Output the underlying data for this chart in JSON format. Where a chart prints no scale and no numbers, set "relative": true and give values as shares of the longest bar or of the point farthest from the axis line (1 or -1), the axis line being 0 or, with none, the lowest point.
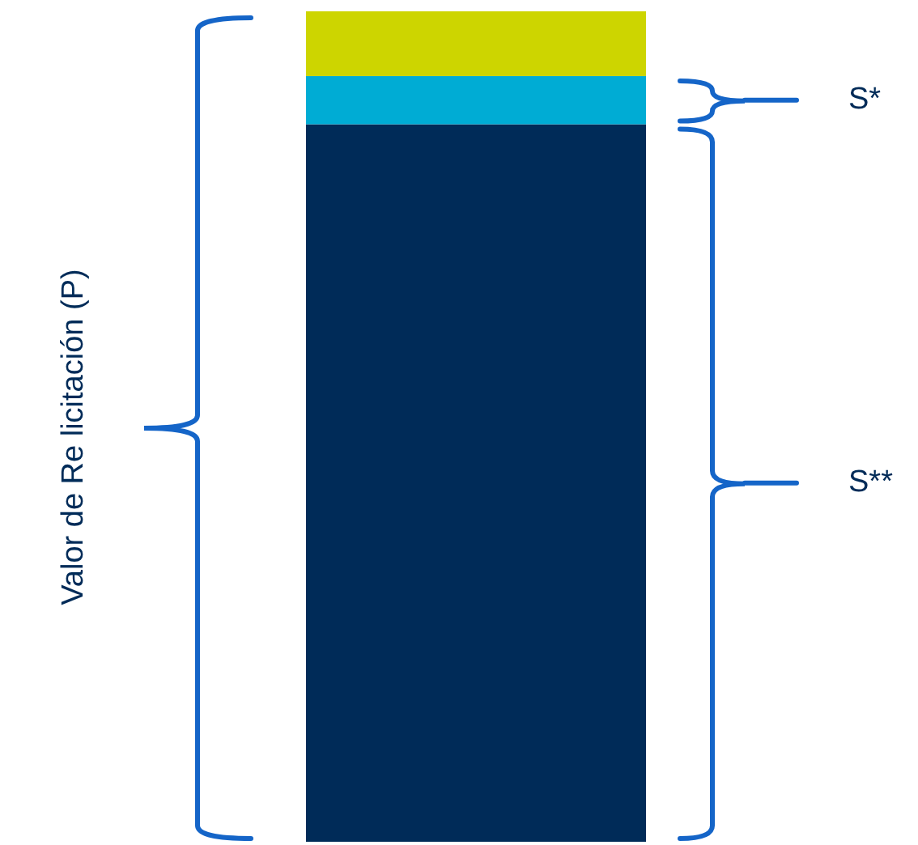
{
  "chart_data": {
    "type": "bar",
    "stacked": true,
    "relative": true,
    "categories": [
      null
    ],
    "series": [
      {
        "color": "#002b58",
        "values": [
          0.864
        ]
      },
      {
        "color": "#00acd4",
        "values": [
          0.058
        ]
      },
      {
        "color": "#cdd500",
        "values": [
          0.078
        ]
      }
    ],
    "annotations": [
      "Valor de Re licitación (P)",
      "S*",
      "S**"
    ]
  }
}
